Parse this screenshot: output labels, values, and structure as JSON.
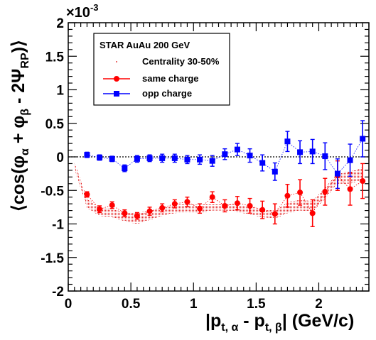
{
  "chart_data": {
    "type": "scatter",
    "xlabel": "|p",
    "xlabel_sub1": "t, α",
    "xlabel_mid": " - p",
    "xlabel_sub2": "t, β",
    "xlabel_unit": "|  (GeV/c)",
    "ylabel_main": "⟨cos(φ",
    "ylabel_sub1": "α",
    "ylabel_mid": " + φ",
    "ylabel_sub2": "β",
    "ylabel_mid2": " - 2Ψ",
    "ylabel_sub3": "RP",
    "ylabel_end": ")⟩",
    "exponent_label": "×10",
    "exponent_power": "-3",
    "xlim": [
      0,
      2.4
    ],
    "ylim": [
      -2,
      2
    ],
    "xticks": [
      {
        "v": 0,
        "label": "0"
      },
      {
        "v": 0.5,
        "label": "0.5"
      },
      {
        "v": 1,
        "label": "1"
      },
      {
        "v": 1.5,
        "label": "1.5"
      },
      {
        "v": 2,
        "label": "2"
      }
    ],
    "yticks": [
      {
        "v": 2,
        "label": "2"
      },
      {
        "v": 1.5,
        "label": "1.5"
      },
      {
        "v": 1,
        "label": "1"
      },
      {
        "v": 0.5,
        "label": "0.5"
      },
      {
        "v": 0,
        "label": "0"
      },
      {
        "v": -0.5,
        "label": "-0.5"
      },
      {
        "v": -1,
        "label": "-1"
      },
      {
        "v": -1.5,
        "label": "-1.5"
      },
      {
        "v": -2,
        "label": "-2"
      }
    ],
    "legend": {
      "title": "STAR  AuAu 200 GeV",
      "entries": [
        {
          "label": "Centrality 30-50%",
          "marker": "dot",
          "color": "#dd0000"
        },
        {
          "label": "same charge",
          "marker": "circle",
          "color": "#ff0000"
        },
        {
          "label": "opp charge",
          "marker": "square",
          "color": "#0000ff"
        }
      ],
      "placement": "top-left"
    },
    "zero_line": true,
    "series": [
      {
        "label": "same charge",
        "color": "#ff0000",
        "marker": "circle",
        "x": [
          0.15,
          0.25,
          0.35,
          0.45,
          0.55,
          0.65,
          0.75,
          0.85,
          0.95,
          1.05,
          1.15,
          1.25,
          1.35,
          1.45,
          1.55,
          1.65,
          1.75,
          1.85,
          1.95,
          2.05,
          2.15,
          2.25,
          2.35
        ],
        "y": [
          -0.56,
          -0.78,
          -0.72,
          -0.84,
          -0.88,
          -0.81,
          -0.76,
          -0.7,
          -0.67,
          -0.77,
          -0.6,
          -0.73,
          -0.69,
          -0.73,
          -0.79,
          -0.85,
          -0.58,
          -0.53,
          -0.84,
          -0.52,
          -0.28,
          -0.48,
          -0.36
        ],
        "err": [
          0.04,
          0.05,
          0.05,
          0.05,
          0.05,
          0.06,
          0.06,
          0.06,
          0.07,
          0.07,
          0.08,
          0.09,
          0.1,
          0.11,
          0.13,
          0.15,
          0.17,
          0.19,
          0.2,
          0.2,
          0.22,
          0.24,
          0.26
        ]
      },
      {
        "label": "opp charge",
        "color": "#0000ff",
        "marker": "square",
        "x": [
          0.15,
          0.25,
          0.35,
          0.45,
          0.55,
          0.65,
          0.75,
          0.85,
          0.95,
          1.05,
          1.15,
          1.25,
          1.35,
          1.45,
          1.55,
          1.65,
          1.75,
          1.85,
          1.95,
          2.05,
          2.15,
          2.25,
          2.35
        ],
        "y": [
          0.03,
          -0.01,
          -0.03,
          -0.17,
          -0.03,
          -0.02,
          -0.02,
          -0.02,
          -0.04,
          -0.04,
          -0.06,
          0.04,
          0.11,
          0.02,
          -0.09,
          -0.22,
          0.23,
          0.07,
          0.08,
          0.01,
          -0.25,
          -0.05,
          0.27
        ],
        "err": [
          0.04,
          0.04,
          0.04,
          0.05,
          0.05,
          0.05,
          0.06,
          0.06,
          0.06,
          0.07,
          0.08,
          0.08,
          0.09,
          0.1,
          0.12,
          0.13,
          0.15,
          0.17,
          0.18,
          0.2,
          0.22,
          0.24,
          0.27
        ]
      }
    ],
    "band": {
      "label": "Centrality 30-50%",
      "color": "#dd0000",
      "x": [
        0.05,
        0.15,
        0.25,
        0.35,
        0.45,
        0.55,
        0.65,
        0.75,
        0.85,
        0.95,
        1.05,
        1.15,
        1.25,
        1.35,
        1.45,
        1.55,
        1.65,
        1.75,
        1.85,
        1.95,
        2.05,
        2.15,
        2.25,
        2.35
      ],
      "upper": [
        -0.08,
        -0.62,
        -0.76,
        -0.78,
        -0.82,
        -0.84,
        -0.8,
        -0.76,
        -0.72,
        -0.7,
        -0.72,
        -0.7,
        -0.7,
        -0.72,
        -0.74,
        -0.78,
        -0.8,
        -0.68,
        -0.64,
        -0.66,
        -0.46,
        -0.24,
        -0.22,
        -0.16
      ],
      "lower": [
        -0.18,
        -0.76,
        -0.88,
        -0.9,
        -0.96,
        -1.0,
        -0.94,
        -0.88,
        -0.84,
        -0.82,
        -0.84,
        -0.8,
        -0.8,
        -0.82,
        -0.86,
        -0.9,
        -0.92,
        -0.84,
        -0.8,
        -0.82,
        -0.62,
        -0.4,
        -0.4,
        -0.34
      ]
    }
  }
}
